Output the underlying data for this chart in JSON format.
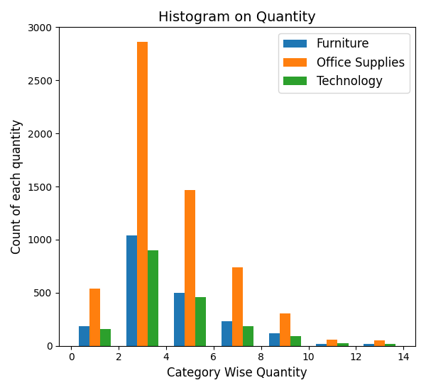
{
  "title": "Histogram on Quantity",
  "xlabel": "Category Wise Quantity",
  "ylabel": "Count of each quantity",
  "xlim": [
    -0.5,
    14.5
  ],
  "ylim": [
    0,
    3000
  ],
  "yticks": [
    0,
    500,
    1000,
    1500,
    2000,
    2500,
    3000
  ],
  "xticks": [
    0,
    2,
    4,
    6,
    8,
    10,
    12,
    14
  ],
  "categories": [
    "Furniture",
    "Office Supplies",
    "Technology"
  ],
  "colors": [
    "#1f77b4",
    "#ff7f0e",
    "#2ca02c"
  ],
  "bin_centers": [
    1,
    3,
    5,
    7,
    9,
    11,
    13
  ],
  "furniture_values": [
    185,
    1040,
    500,
    230,
    115,
    20,
    20
  ],
  "office_supplies_values": [
    540,
    2860,
    1470,
    740,
    305,
    60,
    50
  ],
  "technology_values": [
    160,
    900,
    460,
    185,
    90,
    25,
    20
  ],
  "bar_width": 0.45,
  "title_fontsize": 14,
  "label_fontsize": 12,
  "tick_fontsize": 10,
  "legend_fontsize": 12,
  "figwidth": 6.0,
  "figheight": 5.5,
  "dpi": 100
}
